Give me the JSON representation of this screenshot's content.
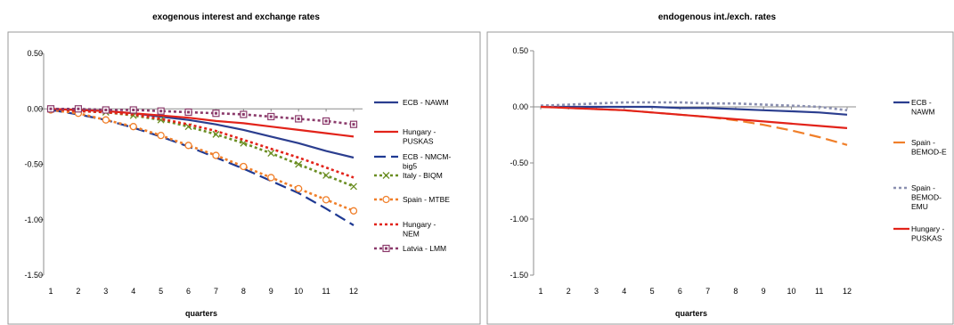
{
  "chart_data": [
    {
      "type": "line",
      "title": "exogenous interest and exchange rates",
      "xlabel": "quarters",
      "ylabel": "",
      "x": [
        1,
        2,
        3,
        4,
        5,
        6,
        7,
        8,
        9,
        10,
        11,
        12
      ],
      "ylim": [
        -1.5,
        0.5
      ],
      "yticks": [
        "0.50",
        "0.00",
        "-0.50",
        "-1.00",
        "-1.50"
      ],
      "ytick_values": [
        0.5,
        0,
        -0.5,
        -1.0,
        -1.5
      ],
      "grid": false,
      "legend_position": "right",
      "series": [
        {
          "name": "ECB - NAWM",
          "legend_lines": [
            "ECB - NAWM"
          ],
          "color": "#2b3e8f",
          "style": "solid",
          "marker": "none",
          "values": [
            0,
            -0.01,
            -0.02,
            -0.04,
            -0.07,
            -0.1,
            -0.14,
            -0.19,
            -0.25,
            -0.31,
            -0.38,
            -0.44
          ]
        },
        {
          "name": "Hungary - PUSKAS",
          "legend_lines": [
            "Hungary -",
            "PUSKAS"
          ],
          "color": "#e2231a",
          "style": "solid",
          "marker": "none",
          "values": [
            0,
            -0.01,
            -0.02,
            -0.04,
            -0.06,
            -0.08,
            -0.11,
            -0.13,
            -0.16,
            -0.19,
            -0.22,
            -0.25
          ]
        },
        {
          "name": "ECB - NMCM-big5",
          "legend_lines": [
            "ECB - NMCM-",
            "big5"
          ],
          "color": "#1f3a93",
          "style": "longdash",
          "marker": "none",
          "values": [
            -0.01,
            -0.05,
            -0.1,
            -0.17,
            -0.25,
            -0.34,
            -0.44,
            -0.54,
            -0.65,
            -0.76,
            -0.9,
            -1.05
          ]
        },
        {
          "name": "Italy - BIQM",
          "legend_lines": [
            "Italy - BIQM"
          ],
          "color": "#6b8e23",
          "style": "dot",
          "marker": "x",
          "values": [
            0,
            -0.02,
            -0.03,
            -0.06,
            -0.1,
            -0.16,
            -0.23,
            -0.31,
            -0.4,
            -0.5,
            -0.6,
            -0.7
          ]
        },
        {
          "name": "Spain - MTBE",
          "legend_lines": [
            "Spain - MTBE"
          ],
          "color": "#f07f2a",
          "style": "dot",
          "marker": "circle",
          "values": [
            -0.01,
            -0.04,
            -0.1,
            -0.16,
            -0.24,
            -0.33,
            -0.42,
            -0.52,
            -0.62,
            -0.72,
            -0.82,
            -0.92
          ]
        },
        {
          "name": "Hungary - NEM",
          "legend_lines": [
            "Hungary -",
            "NEM"
          ],
          "color": "#e2231a",
          "style": "dot",
          "marker": "none",
          "values": [
            0,
            -0.02,
            -0.03,
            -0.05,
            -0.09,
            -0.14,
            -0.2,
            -0.28,
            -0.36,
            -0.44,
            -0.53,
            -0.62
          ]
        },
        {
          "name": "Latvia - LMM",
          "legend_lines": [
            "Latvia - LMM"
          ],
          "color": "#8b3a6b",
          "style": "dot",
          "marker": "square",
          "values": [
            0,
            0,
            -0.01,
            -0.01,
            -0.02,
            -0.03,
            -0.04,
            -0.05,
            -0.07,
            -0.09,
            -0.11,
            -0.14
          ]
        }
      ]
    },
    {
      "type": "line",
      "title": "endogenous int./exch. rates",
      "xlabel": "quarters",
      "ylabel": "",
      "x": [
        1,
        2,
        3,
        4,
        5,
        6,
        7,
        8,
        9,
        10,
        11,
        12
      ],
      "ylim": [
        -1.5,
        0.5
      ],
      "yticks": [
        "0.50",
        "0.00",
        "-0.50",
        "-1.00",
        "-1.50"
      ],
      "ytick_values": [
        0.5,
        0,
        -0.5,
        -1.0,
        -1.5
      ],
      "grid": false,
      "legend_position": "right",
      "series": [
        {
          "name": "ECB - NAWM",
          "legend_lines": [
            "ECB -",
            "NAWM"
          ],
          "color": "#2b3e8f",
          "style": "solid",
          "marker": "none",
          "values": [
            0,
            0,
            0,
            0,
            0,
            -0.01,
            -0.01,
            -0.02,
            -0.03,
            -0.04,
            -0.05,
            -0.07
          ]
        },
        {
          "name": "Spain - BEMOD-E",
          "legend_lines": [
            "Spain -",
            "BEMOD-E"
          ],
          "color": "#f07f2a",
          "style": "longdash",
          "marker": "none",
          "values": [
            0,
            -0.01,
            -0.02,
            -0.03,
            -0.05,
            -0.07,
            -0.09,
            -0.12,
            -0.16,
            -0.21,
            -0.27,
            -0.34
          ]
        },
        {
          "name": "Spain - BEMOD-EMU",
          "legend_lines": [
            "Spain -",
            "BEMOD-",
            "EMU"
          ],
          "color": "#8a8fb0",
          "style": "dot",
          "marker": "none",
          "values": [
            0.01,
            0.02,
            0.03,
            0.04,
            0.04,
            0.04,
            0.03,
            0.03,
            0.02,
            0.01,
            0,
            -0.03
          ]
        },
        {
          "name": "Hungary - PUSKAS",
          "legend_lines": [
            "Hungary -",
            "PUSKAS"
          ],
          "color": "#e2231a",
          "style": "solid",
          "marker": "none",
          "values": [
            0,
            -0.01,
            -0.02,
            -0.03,
            -0.05,
            -0.07,
            -0.09,
            -0.11,
            -0.13,
            -0.15,
            -0.17,
            -0.19
          ]
        }
      ]
    }
  ]
}
